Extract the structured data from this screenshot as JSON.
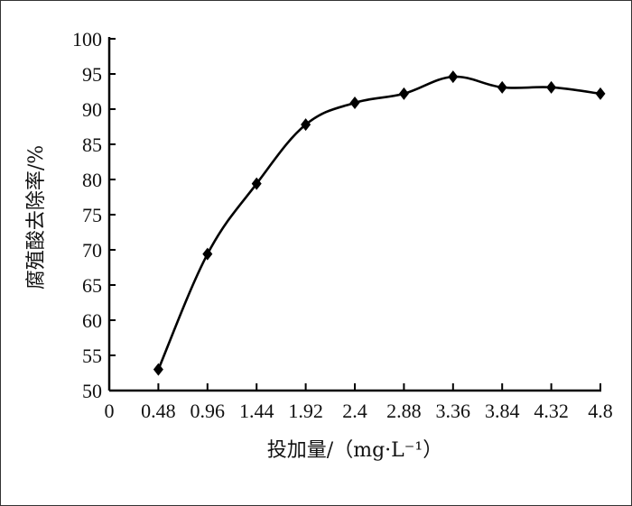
{
  "chart_data": {
    "type": "line",
    "title": "",
    "xlabel": "投加量/（mg·L⁻¹）",
    "ylabel": "腐殖酸去除率/%",
    "x_ticks": [
      "0",
      "0.48",
      "0.96",
      "1.44",
      "1.92",
      "2.4",
      "2.88",
      "3.36",
      "3.84",
      "4.32",
      "4.8"
    ],
    "y_ticks": [
      "50",
      "55",
      "60",
      "65",
      "70",
      "75",
      "80",
      "85",
      "90",
      "95",
      "100"
    ],
    "xlim": [
      0,
      4.8
    ],
    "ylim": [
      50,
      100
    ],
    "grid": false,
    "marker": "diamond",
    "line_color": "#000000",
    "series": [
      {
        "x": [
          0.48,
          0.96,
          1.44,
          1.92,
          2.4,
          2.88,
          3.36,
          3.84,
          4.32,
          4.8
        ],
        "y": [
          53.0,
          69.4,
          79.4,
          87.8,
          90.9,
          92.2,
          94.6,
          93.1,
          93.1,
          92.2
        ]
      }
    ]
  }
}
